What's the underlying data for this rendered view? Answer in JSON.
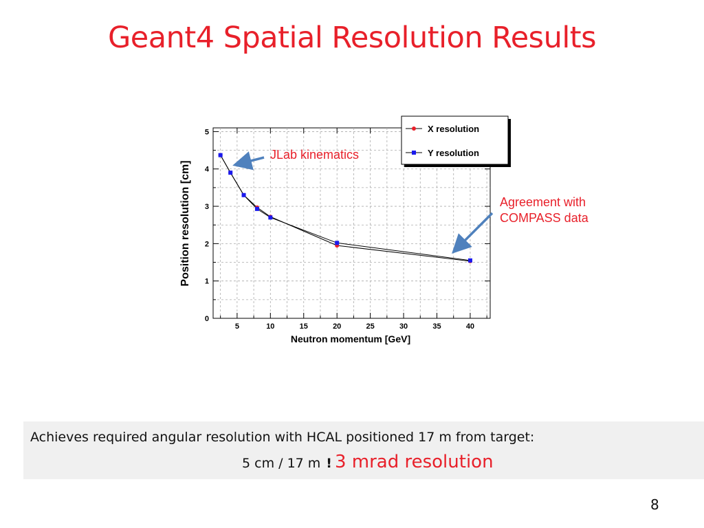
{
  "slide": {
    "title": "Geant4 Spatial Resolution Results",
    "page_number": "8"
  },
  "annotations": {
    "jlab": "JLab kinematics",
    "compass_line1": "Agreement with",
    "compass_line2": "COMPASS data"
  },
  "summary": {
    "line1": "Achieves required angular resolution  with HCAL positioned 17 m from target:",
    "line2_prefix": "5 cm / 17 m",
    "line2_symbol": "!",
    "line2_result": "3 mrad resolution"
  },
  "colors": {
    "accent_red": "#e8202a",
    "x_series": "#e8202a",
    "y_series": "#1a1aee",
    "arrow": "#4f81bd"
  },
  "chart_data": {
    "type": "line",
    "xlabel": "Neutron momentum [GeV]",
    "ylabel": "Position resolution [cm]",
    "xlim": [
      1.4,
      43
    ],
    "ylim": [
      0,
      5.1
    ],
    "xticks": [
      5,
      10,
      15,
      20,
      25,
      30,
      35,
      40
    ],
    "yticks": [
      0,
      1,
      2,
      3,
      4,
      5
    ],
    "grid": true,
    "legend_position": "top-right",
    "series": [
      {
        "name": "X resolution",
        "color": "#e8202a",
        "marker": "circle",
        "x": [
          2.5,
          4,
          6,
          8,
          10,
          20,
          40
        ],
        "y": [
          4.37,
          3.9,
          3.3,
          2.97,
          2.72,
          1.95,
          1.53
        ]
      },
      {
        "name": "Y resolution",
        "color": "#1a1aee",
        "marker": "square",
        "x": [
          2.5,
          4,
          6,
          8,
          10,
          20,
          40
        ],
        "y": [
          4.37,
          3.9,
          3.3,
          2.93,
          2.7,
          2.02,
          1.55
        ]
      }
    ]
  }
}
